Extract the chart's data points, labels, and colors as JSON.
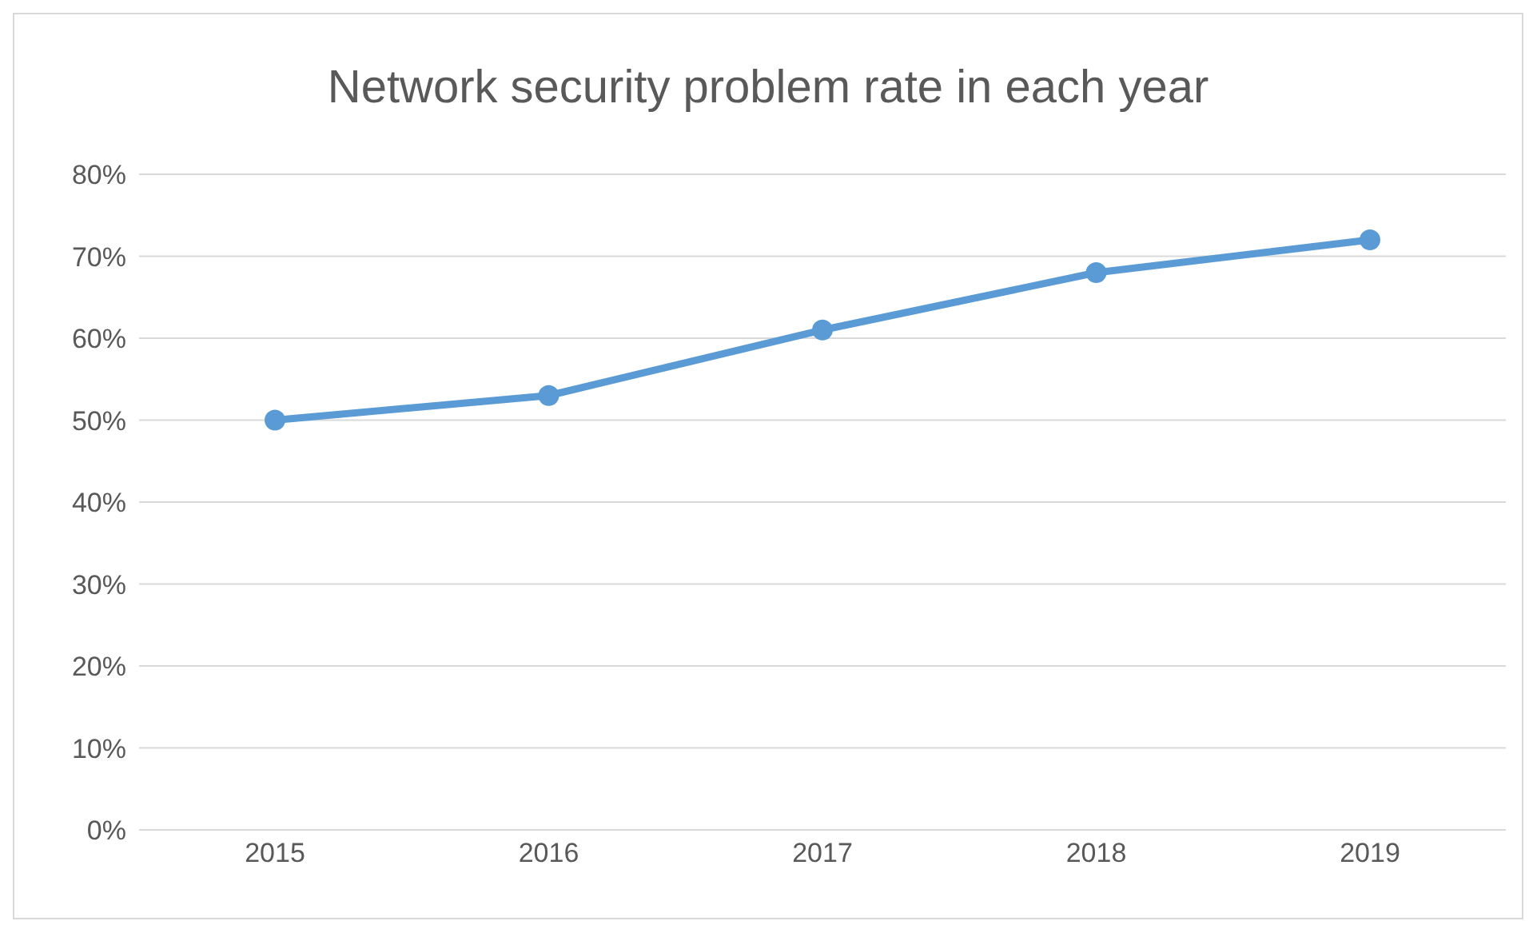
{
  "chart_data": {
    "type": "line",
    "title": "Network security problem rate in each year",
    "categories": [
      "2015",
      "2016",
      "2017",
      "2018",
      "2019"
    ],
    "series": [
      {
        "color": "#5b9bd5",
        "values": [
          50,
          53,
          61,
          68,
          72
        ]
      }
    ],
    "ylim": [
      0,
      80
    ],
    "yticks": [
      {
        "value": 0,
        "label": "0%"
      },
      {
        "value": 10,
        "label": "10%"
      },
      {
        "value": 20,
        "label": "20%"
      },
      {
        "value": 30,
        "label": "30%"
      },
      {
        "value": 40,
        "label": "40%"
      },
      {
        "value": 50,
        "label": "50%"
      },
      {
        "value": 60,
        "label": "60%"
      },
      {
        "value": 70,
        "label": "70%"
      },
      {
        "value": 80,
        "label": "80%"
      }
    ],
    "grid": "y",
    "marker": "circle",
    "line_style": "solid"
  }
}
